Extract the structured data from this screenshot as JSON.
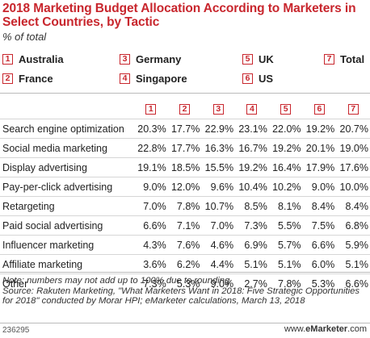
{
  "header": {
    "title": "2018 Marketing Budget Allocation According to Marketers in Select Countries, by Tactic",
    "subtitle": "% of total"
  },
  "legend": [
    {
      "num": "1",
      "label": "Australia"
    },
    {
      "num": "2",
      "label": "France"
    },
    {
      "num": "3",
      "label": "Germany"
    },
    {
      "num": "4",
      "label": "Singapore"
    },
    {
      "num": "5",
      "label": "UK"
    },
    {
      "num": "6",
      "label": "US"
    },
    {
      "num": "7",
      "label": "Total"
    }
  ],
  "colors": {
    "accent": "#c8262d",
    "rule": "#bbbbbb"
  },
  "chart_data": {
    "type": "table",
    "title": "2018 Marketing Budget Allocation According to Marketers in Select Countries, by Tactic",
    "subtitle": "% of total",
    "columns": [
      "1",
      "2",
      "3",
      "4",
      "5",
      "6",
      "7"
    ],
    "rows": [
      {
        "category": "Search engine optimization",
        "values": [
          "20.3%",
          "17.7%",
          "22.9%",
          "23.1%",
          "22.0%",
          "19.2%",
          "20.7%"
        ]
      },
      {
        "category": "Social media marketing",
        "values": [
          "22.8%",
          "17.7%",
          "16.3%",
          "16.7%",
          "19.2%",
          "20.1%",
          "19.0%"
        ]
      },
      {
        "category": "Display advertising",
        "values": [
          "19.1%",
          "18.5%",
          "15.5%",
          "19.2%",
          "16.4%",
          "17.9%",
          "17.6%"
        ]
      },
      {
        "category": "Pay-per-click advertising",
        "values": [
          "9.0%",
          "12.0%",
          "9.6%",
          "10.4%",
          "10.2%",
          "9.0%",
          "10.0%"
        ]
      },
      {
        "category": "Retargeting",
        "values": [
          "7.0%",
          "7.8%",
          "10.7%",
          "8.5%",
          "8.1%",
          "8.4%",
          "8.4%"
        ]
      },
      {
        "category": "Paid social advertising",
        "values": [
          "6.6%",
          "7.1%",
          "7.0%",
          "7.3%",
          "5.5%",
          "7.5%",
          "6.8%"
        ]
      },
      {
        "category": "Influencer marketing",
        "values": [
          "4.3%",
          "7.6%",
          "4.6%",
          "6.9%",
          "5.7%",
          "6.6%",
          "5.9%"
        ]
      },
      {
        "category": "Affiliate marketing",
        "values": [
          "3.6%",
          "6.2%",
          "4.4%",
          "5.1%",
          "5.1%",
          "6.0%",
          "5.1%"
        ]
      },
      {
        "category": "Other",
        "values": [
          "7.3%",
          "5.3%",
          "9.0%",
          "2.7%",
          "7.8%",
          "5.3%",
          "6.6%"
        ]
      }
    ]
  },
  "notes": {
    "note": "Note: numbers may not add up to 100% due to rounding",
    "source": "Source: Rakuten Marketing, \"What Marketers Want in 2018: Five Strategic Opportunities for 2018\" conducted by Morar HPI; eMarketer calculations, March 13, 2018"
  },
  "footer": {
    "chart_id": "236295",
    "brand_prefix": "www.",
    "brand_name": "eMarketer",
    "brand_suffix": ".com"
  }
}
